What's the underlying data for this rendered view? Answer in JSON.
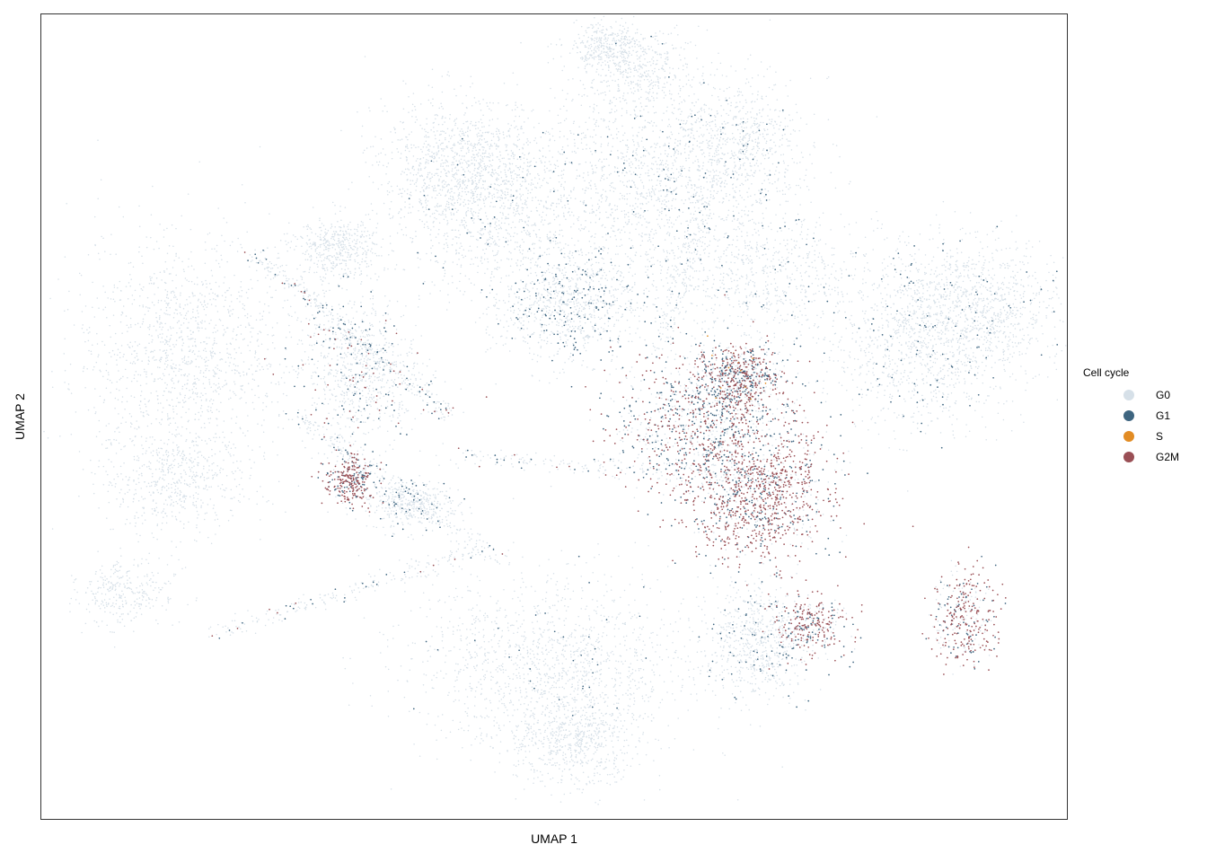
{
  "chart_data": {
    "type": "scatter",
    "title": "",
    "xlabel": "UMAP 1",
    "ylabel": "UMAP 2",
    "grid": false,
    "axis_ticks": false,
    "legend_position": "right",
    "legend": {
      "title": "Cell cycle",
      "entries": [
        {
          "name": "G0",
          "color": "#d6e0e8"
        },
        {
          "name": "G1",
          "color": "#3e6580"
        },
        {
          "name": "S",
          "color": "#e28c24"
        },
        {
          "name": "G2M",
          "color": "#9a4f55"
        }
      ]
    },
    "clusters": [
      {
        "x": 0.14,
        "y": 0.58,
        "sx": 0.055,
        "sy": 0.075,
        "density": 0.9,
        "mix": [
          1,
          0,
          0,
          0
        ]
      },
      {
        "x": 0.13,
        "y": 0.42,
        "sx": 0.035,
        "sy": 0.035,
        "density": 0.35,
        "mix": [
          1,
          0,
          0,
          0
        ]
      },
      {
        "x": 0.41,
        "y": 0.82,
        "sx": 0.04,
        "sy": 0.04,
        "density": 0.55,
        "mix": [
          1,
          0,
          0,
          0
        ]
      },
      {
        "x": 0.44,
        "y": 0.76,
        "sx": 0.05,
        "sy": 0.05,
        "density": 0.7,
        "mix": [
          0.97,
          0.03,
          0,
          0
        ]
      },
      {
        "x": 0.58,
        "y": 0.93,
        "sx": 0.025,
        "sy": 0.025,
        "density": 0.25,
        "mix": [
          1,
          0,
          0,
          0
        ]
      },
      {
        "x": 0.59,
        "y": 0.79,
        "sx": 0.045,
        "sy": 0.07,
        "density": 0.75,
        "mix": [
          0.94,
          0.06,
          0,
          0
        ]
      },
      {
        "x": 0.68,
        "y": 0.84,
        "sx": 0.035,
        "sy": 0.04,
        "density": 0.5,
        "mix": [
          0.97,
          0.03,
          0,
          0
        ]
      },
      {
        "x": 0.7,
        "y": 0.68,
        "sx": 0.06,
        "sy": 0.045,
        "density": 0.6,
        "mix": [
          0.96,
          0.04,
          0,
          0
        ]
      },
      {
        "x": 0.86,
        "y": 0.59,
        "sx": 0.045,
        "sy": 0.055,
        "density": 0.75,
        "mix": [
          0.93,
          0.07,
          0,
          0
        ]
      },
      {
        "x": 0.92,
        "y": 0.64,
        "sx": 0.04,
        "sy": 0.04,
        "density": 0.5,
        "mix": [
          0.97,
          0.03,
          0,
          0
        ]
      },
      {
        "x": 0.51,
        "y": 0.64,
        "sx": 0.035,
        "sy": 0.035,
        "density": 0.6,
        "mix": [
          0.85,
          0.15,
          0,
          0
        ]
      },
      {
        "x": 0.29,
        "y": 0.71,
        "sx": 0.02,
        "sy": 0.02,
        "density": 0.3,
        "mix": [
          1,
          0,
          0,
          0
        ]
      },
      {
        "x": 0.31,
        "y": 0.56,
        "sx": 0.03,
        "sy": 0.045,
        "density": 0.55,
        "mix": [
          0.85,
          0.1,
          0,
          0.05
        ]
      },
      {
        "x": 0.3,
        "y": 0.42,
        "sx": 0.012,
        "sy": 0.015,
        "density": 0.2,
        "mix": [
          0.1,
          0.25,
          0,
          0.65
        ]
      },
      {
        "x": 0.65,
        "y": 0.49,
        "sx": 0.045,
        "sy": 0.045,
        "density": 0.8,
        "mix": [
          0.35,
          0.3,
          0,
          0.35
        ]
      },
      {
        "x": 0.7,
        "y": 0.4,
        "sx": 0.035,
        "sy": 0.04,
        "density": 0.7,
        "mix": [
          0.15,
          0.2,
          0,
          0.65
        ]
      },
      {
        "x": 0.68,
        "y": 0.55,
        "sx": 0.02,
        "sy": 0.02,
        "density": 0.4,
        "mix": [
          0.3,
          0.3,
          0.03,
          0.37
        ]
      },
      {
        "x": 0.36,
        "y": 0.39,
        "sx": 0.02,
        "sy": 0.015,
        "density": 0.25,
        "mix": [
          0.9,
          0.1,
          0,
          0
        ]
      },
      {
        "x": 0.5,
        "y": 0.19,
        "sx": 0.07,
        "sy": 0.055,
        "density": 0.95,
        "mix": [
          0.98,
          0.02,
          0,
          0
        ]
      },
      {
        "x": 0.52,
        "y": 0.1,
        "sx": 0.03,
        "sy": 0.03,
        "density": 0.4,
        "mix": [
          1,
          0,
          0,
          0
        ]
      },
      {
        "x": 0.7,
        "y": 0.22,
        "sx": 0.025,
        "sy": 0.035,
        "density": 0.45,
        "mix": [
          0.9,
          0.1,
          0,
          0
        ]
      },
      {
        "x": 0.75,
        "y": 0.24,
        "sx": 0.018,
        "sy": 0.02,
        "density": 0.2,
        "mix": [
          0.2,
          0.2,
          0,
          0.6
        ]
      },
      {
        "x": 0.9,
        "y": 0.25,
        "sx": 0.015,
        "sy": 0.03,
        "density": 0.25,
        "mix": [
          0.3,
          0.15,
          0,
          0.55
        ]
      },
      {
        "x": 0.08,
        "y": 0.28,
        "sx": 0.025,
        "sy": 0.02,
        "density": 0.2,
        "mix": [
          1,
          0,
          0,
          0
        ]
      },
      {
        "x": 0.55,
        "y": 0.96,
        "sx": 0.02,
        "sy": 0.015,
        "density": 0.2,
        "mix": [
          1,
          0,
          0,
          0
        ]
      }
    ],
    "trails": [
      {
        "from": [
          0.21,
          0.7
        ],
        "to": [
          0.4,
          0.5
        ],
        "count": 300,
        "mix": [
          0.8,
          0.15,
          0,
          0.05
        ]
      },
      {
        "from": [
          0.25,
          0.5
        ],
        "to": [
          0.45,
          0.32
        ],
        "count": 250,
        "mix": [
          0.9,
          0.07,
          0,
          0.03
        ]
      },
      {
        "from": [
          0.17,
          0.23
        ],
        "to": [
          0.44,
          0.34
        ],
        "count": 220,
        "mix": [
          0.9,
          0.08,
          0,
          0.02
        ]
      },
      {
        "from": [
          0.4,
          0.45
        ],
        "to": [
          0.75,
          0.42
        ],
        "count": 220,
        "mix": [
          0.85,
          0.1,
          0,
          0.05
        ]
      },
      {
        "from": [
          0.6,
          0.58
        ],
        "to": [
          0.66,
          0.8
        ],
        "count": 150,
        "mix": [
          0.9,
          0.1,
          0,
          0
        ]
      }
    ]
  }
}
